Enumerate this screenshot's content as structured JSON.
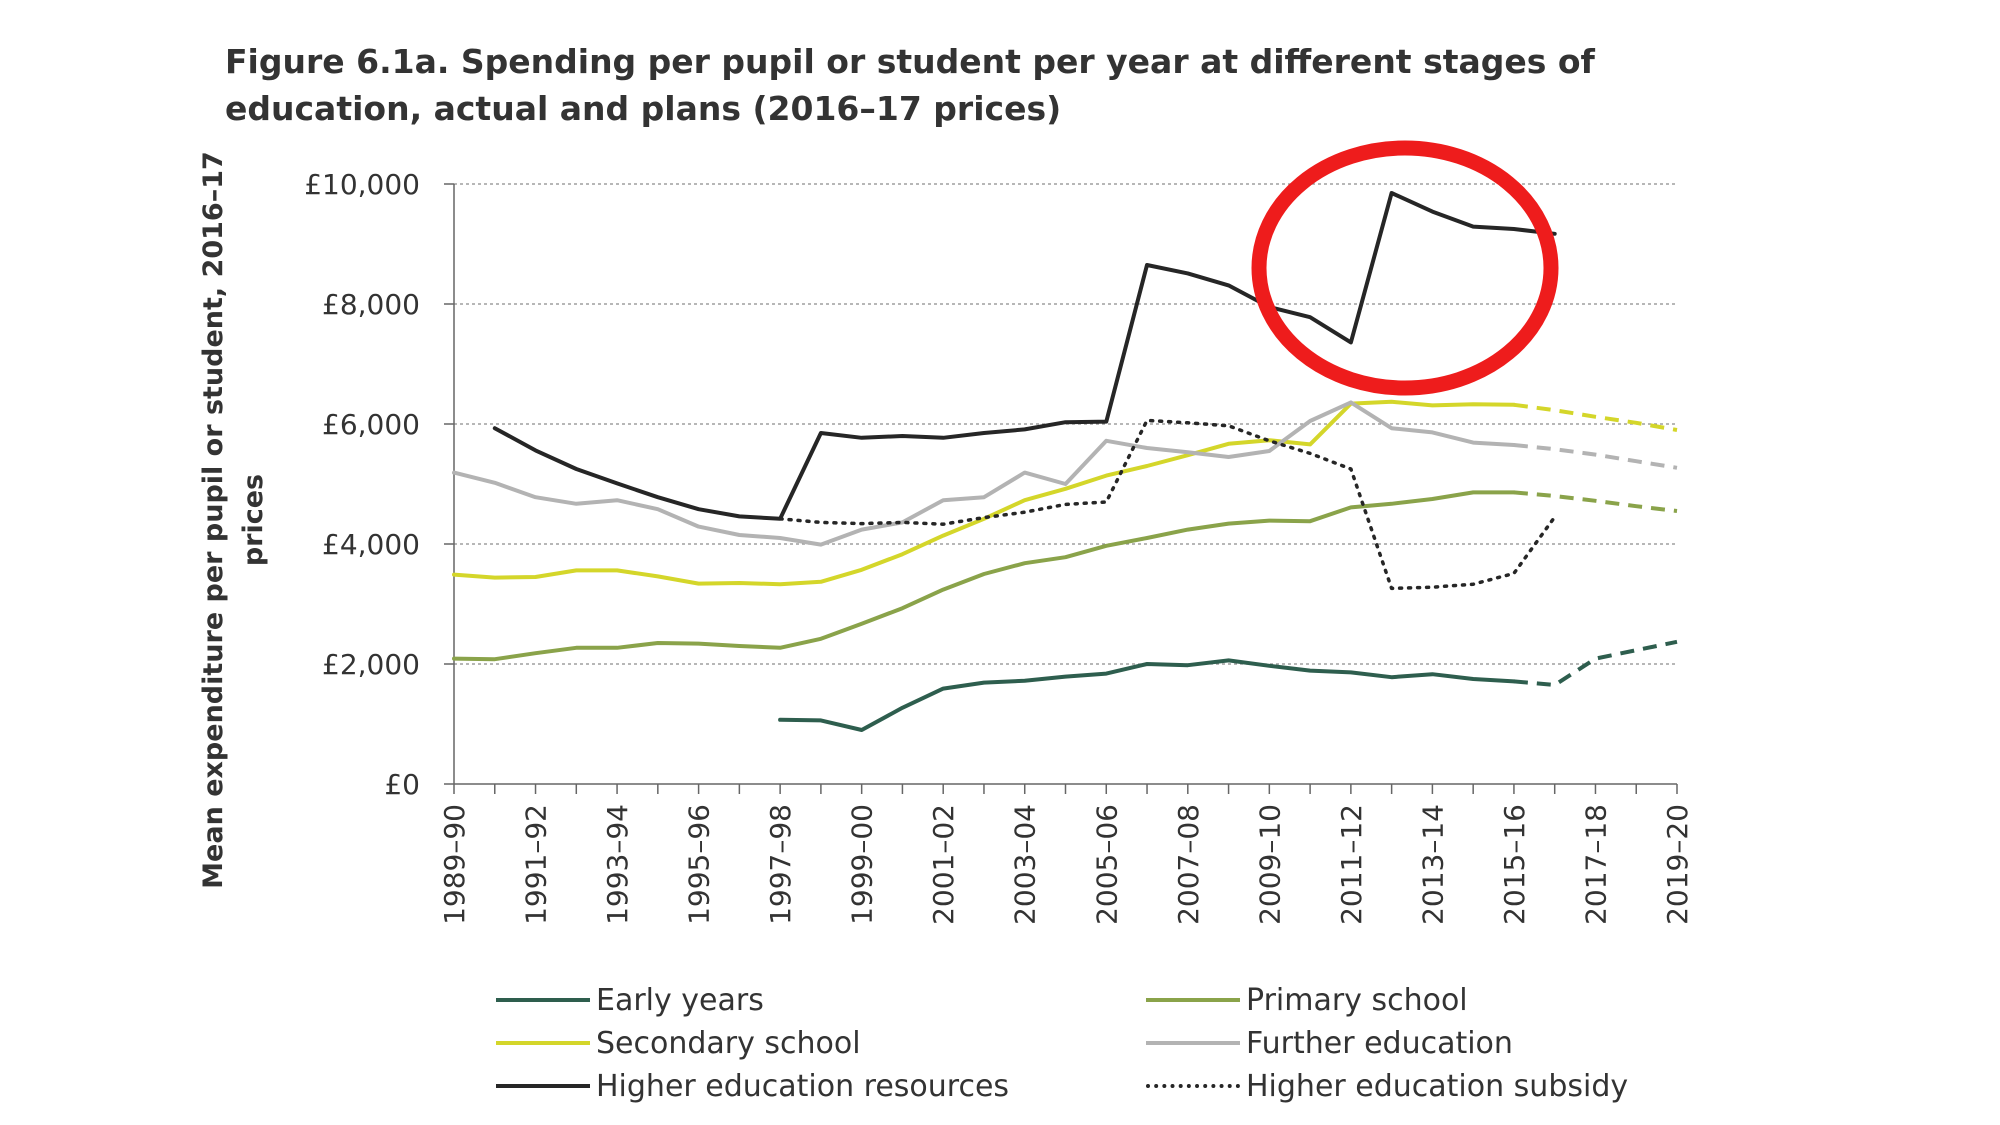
{
  "chart_data": {
    "type": "line",
    "title": "Figure 6.1a. Spending per pupil or student per year at different stages of education, actual and plans (2016–17 prices)",
    "xlabel": "",
    "ylabel": "Mean expenditure per pupil or student, 2016–17 prices",
    "ylim": [
      0,
      10000
    ],
    "y_ticks": [
      "£0",
      "£2,000",
      "£4,000",
      "£6,000",
      "£8,000",
      "£10,000"
    ],
    "y_tick_values": [
      0,
      2000,
      4000,
      6000,
      8000,
      10000
    ],
    "grid": true,
    "legend_position": "bottom",
    "x": [
      "1989–90",
      "1990–91",
      "1991–92",
      "1992–93",
      "1993–94",
      "1994–95",
      "1995–96",
      "1996–97",
      "1997–98",
      "1998–99",
      "1999–00",
      "2000–01",
      "2001–02",
      "2002–03",
      "2003–04",
      "2004–05",
      "2005–06",
      "2006–07",
      "2007–08",
      "2008–09",
      "2009–10",
      "2010–11",
      "2011–12",
      "2012–13",
      "2013–14",
      "2014–15",
      "2015–16",
      "2016–17",
      "2017–18",
      "2018–19",
      "2019–20"
    ],
    "x_tick_labels": [
      "1989–90",
      "1991–92",
      "1993–94",
      "1995–96",
      "1997–98",
      "1999–00",
      "2001–02",
      "2003–04",
      "2005–06",
      "2007–08",
      "2009–10",
      "2011–12",
      "2013–14",
      "2015–16",
      "2017–18",
      "2019–20"
    ],
    "series": [
      {
        "name": "Early years",
        "color": "#2e5e4e",
        "values": [
          null,
          null,
          null,
          null,
          null,
          null,
          null,
          null,
          1070,
          1060,
          900,
          1270,
          1590,
          1690,
          1720,
          1790,
          1840,
          2000,
          1980,
          2060,
          1970,
          1890,
          1860,
          1780,
          1830,
          1750,
          1710,
          null,
          null,
          null,
          null
        ],
        "planned": [
          null,
          null,
          null,
          null,
          null,
          null,
          null,
          null,
          null,
          null,
          null,
          null,
          null,
          null,
          null,
          null,
          null,
          null,
          null,
          null,
          null,
          null,
          null,
          null,
          null,
          null,
          1710,
          1650,
          2090,
          2230,
          2370
        ]
      },
      {
        "name": "Primary school",
        "color": "#8aa34a",
        "values": [
          2090,
          2080,
          2180,
          2270,
          2270,
          2350,
          2340,
          2300,
          2270,
          2420,
          2670,
          2930,
          3240,
          3500,
          3680,
          3780,
          3970,
          4100,
          4240,
          4340,
          4390,
          4380,
          4610,
          4670,
          4750,
          4860,
          4860,
          null,
          null,
          null,
          null
        ],
        "planned": [
          null,
          null,
          null,
          null,
          null,
          null,
          null,
          null,
          null,
          null,
          null,
          null,
          null,
          null,
          null,
          null,
          null,
          null,
          null,
          null,
          null,
          null,
          null,
          null,
          null,
          null,
          4860,
          4800,
          4720,
          4630,
          4550
        ]
      },
      {
        "name": "Secondary school",
        "color": "#d4d62a",
        "values": [
          3490,
          3440,
          3450,
          3560,
          3560,
          3460,
          3340,
          3350,
          3330,
          3370,
          3570,
          3830,
          4140,
          4420,
          4730,
          4920,
          5140,
          5300,
          5480,
          5670,
          5730,
          5660,
          6340,
          6370,
          6310,
          6330,
          6320,
          null,
          null,
          null,
          null
        ],
        "planned": [
          null,
          null,
          null,
          null,
          null,
          null,
          null,
          null,
          null,
          null,
          null,
          null,
          null,
          null,
          null,
          null,
          null,
          null,
          null,
          null,
          null,
          null,
          null,
          null,
          null,
          null,
          6320,
          6230,
          6120,
          6020,
          5900
        ]
      },
      {
        "name": "Further education",
        "color": "#b3b3b3",
        "values": [
          5190,
          5020,
          4780,
          4670,
          4730,
          4580,
          4290,
          4150,
          4100,
          3990,
          4240,
          4360,
          4730,
          4780,
          5190,
          5000,
          5720,
          5600,
          5530,
          5450,
          5550,
          6050,
          6360,
          5930,
          5860,
          5690,
          5650,
          null,
          null,
          null,
          null
        ],
        "planned": [
          null,
          null,
          null,
          null,
          null,
          null,
          null,
          null,
          null,
          null,
          null,
          null,
          null,
          null,
          null,
          null,
          null,
          null,
          null,
          null,
          null,
          null,
          null,
          null,
          null,
          null,
          5650,
          5580,
          5490,
          5380,
          5270
        ]
      },
      {
        "name": "Higher education resources",
        "color": "#262626",
        "values": [
          null,
          5930,
          5560,
          5250,
          5010,
          4780,
          4580,
          4460,
          4420,
          5850,
          5770,
          5800,
          5770,
          5850,
          5910,
          6030,
          6040,
          8650,
          8510,
          8310,
          7950,
          7780,
          7360,
          9850,
          9540,
          9290,
          9250,
          9170,
          null,
          null,
          null
        ],
        "planned": null
      },
      {
        "name": "Higher education subsidy",
        "color": "#262626",
        "dotted": true,
        "values": [
          null,
          null,
          null,
          null,
          null,
          null,
          null,
          null,
          4420,
          4360,
          4340,
          4360,
          4330,
          4440,
          4530,
          4660,
          4700,
          6060,
          6020,
          5970,
          5720,
          5510,
          5250,
          3260,
          3280,
          3330,
          3510,
          4450,
          null,
          null,
          null
        ],
        "planned": null
      }
    ]
  }
}
